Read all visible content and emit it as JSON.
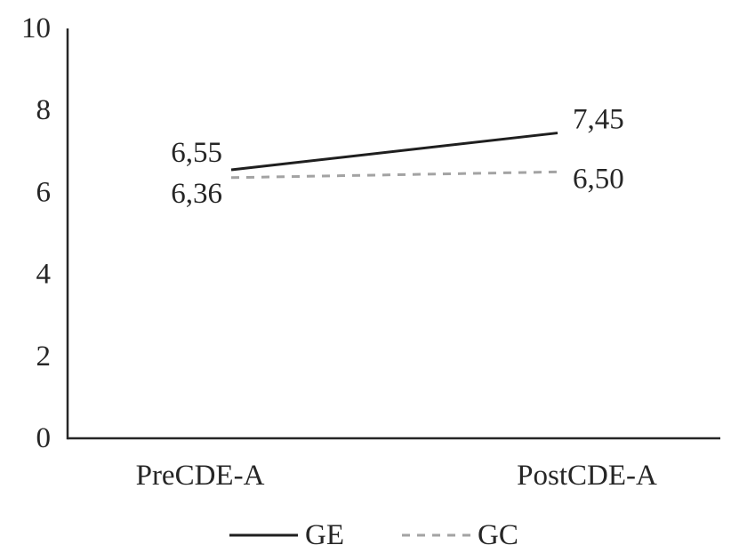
{
  "page": {
    "background": "#ffffff"
  },
  "chart_data": {
    "type": "line",
    "title": "",
    "xlabel": "",
    "ylabel": "",
    "categories": [
      "PreCDE-A",
      "PostCDE-A"
    ],
    "series": [
      {
        "name": "GE",
        "values": [
          6.55,
          7.45
        ],
        "value_labels": [
          "6,55",
          "7,45"
        ],
        "line_style": "solid",
        "color": "#1f1f1f"
      },
      {
        "name": "GC",
        "values": [
          6.36,
          6.5
        ],
        "value_labels": [
          "6,36",
          "6,50"
        ],
        "line_style": "dashed",
        "color": "#a3a3a3"
      }
    ],
    "ylim": [
      0,
      10
    ],
    "yticks": [
      10,
      8,
      6,
      4,
      2,
      0
    ],
    "grid": false,
    "tick_marks": false,
    "legend_position": "bottom-center",
    "decimal_separator": ","
  },
  "colors": {
    "axis": "#262626",
    "text": "#262626",
    "background": "#ffffff"
  }
}
